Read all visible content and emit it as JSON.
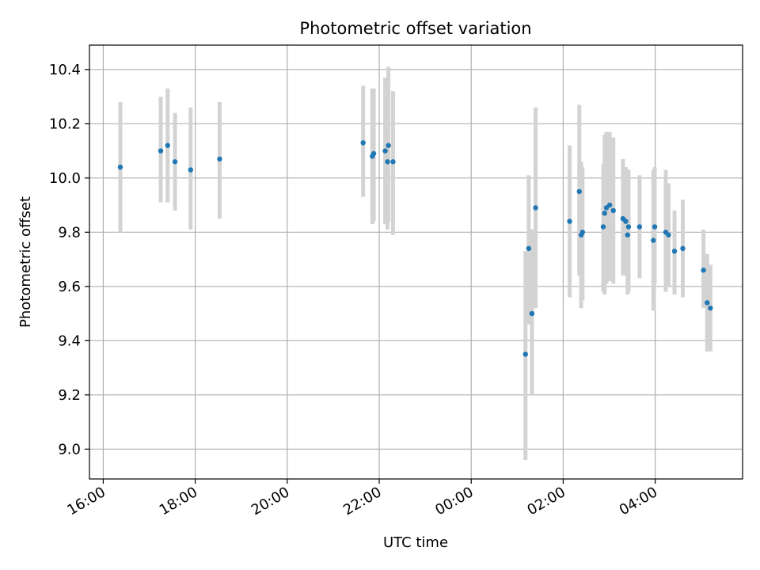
{
  "chart_data": {
    "type": "scatter",
    "title": "Photometric offset variation",
    "xlabel": "UTC time",
    "ylabel": "Photometric offset",
    "xlim_hours": [
      15.7,
      29.9
    ],
    "ylim": [
      8.89,
      10.49
    ],
    "x_ticks": [
      {
        "hours": 16,
        "label": "16:00"
      },
      {
        "hours": 18,
        "label": "18:00"
      },
      {
        "hours": 20,
        "label": "20:00"
      },
      {
        "hours": 22,
        "label": "22:00"
      },
      {
        "hours": 24,
        "label": "00:00"
      },
      {
        "hours": 26,
        "label": "02:00"
      },
      {
        "hours": 28,
        "label": "04:00"
      }
    ],
    "y_ticks": [
      {
        "value": 9.0,
        "label": "9.0"
      },
      {
        "value": 9.2,
        "label": "9.2"
      },
      {
        "value": 9.4,
        "label": "9.4"
      },
      {
        "value": 9.6,
        "label": "9.6"
      },
      {
        "value": 9.8,
        "label": "9.8"
      },
      {
        "value": 10.0,
        "label": "10.0"
      },
      {
        "value": 10.2,
        "label": "10.2"
      },
      {
        "value": 10.4,
        "label": "10.4"
      }
    ],
    "grid": true,
    "marker_color": "#1f77b4",
    "errorbar_color": "#d3d3d3",
    "points": [
      {
        "t": 16.37,
        "y": 10.04,
        "lo": 9.8,
        "hi": 10.28
      },
      {
        "t": 17.25,
        "y": 10.1,
        "lo": 9.91,
        "hi": 10.3
      },
      {
        "t": 17.4,
        "y": 10.12,
        "lo": 9.91,
        "hi": 10.33
      },
      {
        "t": 17.56,
        "y": 10.06,
        "lo": 9.88,
        "hi": 10.24
      },
      {
        "t": 17.9,
        "y": 10.03,
        "lo": 9.81,
        "hi": 10.26
      },
      {
        "t": 18.53,
        "y": 10.07,
        "lo": 9.85,
        "hi": 10.28
      },
      {
        "t": 21.65,
        "y": 10.13,
        "lo": 9.93,
        "hi": 10.34
      },
      {
        "t": 21.85,
        "y": 10.08,
        "lo": 9.83,
        "hi": 10.33
      },
      {
        "t": 21.88,
        "y": 10.09,
        "lo": 9.84,
        "hi": 10.33
      },
      {
        "t": 22.13,
        "y": 10.1,
        "lo": 9.83,
        "hi": 10.37
      },
      {
        "t": 22.18,
        "y": 10.06,
        "lo": 9.81,
        "hi": 10.31
      },
      {
        "t": 22.2,
        "y": 10.12,
        "lo": 9.84,
        "hi": 10.41
      },
      {
        "t": 22.3,
        "y": 10.06,
        "lo": 9.79,
        "hi": 10.32
      },
      {
        "t": 25.18,
        "y": 9.35,
        "lo": 8.96,
        "hi": 9.73
      },
      {
        "t": 25.25,
        "y": 9.74,
        "lo": 9.46,
        "hi": 10.01
      },
      {
        "t": 25.32,
        "y": 9.5,
        "lo": 9.2,
        "hi": 9.81
      },
      {
        "t": 25.4,
        "y": 9.89,
        "lo": 9.52,
        "hi": 10.26
      },
      {
        "t": 26.14,
        "y": 9.84,
        "lo": 9.56,
        "hi": 10.12
      },
      {
        "t": 26.35,
        "y": 9.95,
        "lo": 9.64,
        "hi": 10.27
      },
      {
        "t": 26.39,
        "y": 9.79,
        "lo": 9.52,
        "hi": 10.06
      },
      {
        "t": 26.42,
        "y": 9.8,
        "lo": 9.55,
        "hi": 10.04
      },
      {
        "t": 26.87,
        "y": 9.82,
        "lo": 9.58,
        "hi": 10.05
      },
      {
        "t": 26.9,
        "y": 9.87,
        "lo": 9.57,
        "hi": 10.16
      },
      {
        "t": 26.94,
        "y": 9.89,
        "lo": 9.61,
        "hi": 10.17
      },
      {
        "t": 27.01,
        "y": 9.9,
        "lo": 9.62,
        "hi": 10.17
      },
      {
        "t": 27.09,
        "y": 9.88,
        "lo": 9.61,
        "hi": 10.15
      },
      {
        "t": 27.3,
        "y": 9.85,
        "lo": 9.64,
        "hi": 10.07
      },
      {
        "t": 27.36,
        "y": 9.84,
        "lo": 9.64,
        "hi": 10.04
      },
      {
        "t": 27.4,
        "y": 9.79,
        "lo": 9.57,
        "hi": 10.02
      },
      {
        "t": 27.42,
        "y": 9.82,
        "lo": 9.58,
        "hi": 10.03
      },
      {
        "t": 27.66,
        "y": 9.82,
        "lo": 9.63,
        "hi": 10.01
      },
      {
        "t": 27.96,
        "y": 9.77,
        "lo": 9.51,
        "hi": 10.03
      },
      {
        "t": 27.99,
        "y": 9.82,
        "lo": 9.61,
        "hi": 10.04
      },
      {
        "t": 28.23,
        "y": 9.8,
        "lo": 9.58,
        "hi": 10.03
      },
      {
        "t": 28.29,
        "y": 9.79,
        "lo": 9.6,
        "hi": 9.98
      },
      {
        "t": 28.42,
        "y": 9.73,
        "lo": 9.57,
        "hi": 9.88
      },
      {
        "t": 28.6,
        "y": 9.74,
        "lo": 9.56,
        "hi": 9.92
      },
      {
        "t": 29.05,
        "y": 9.66,
        "lo": 9.52,
        "hi": 9.81
      },
      {
        "t": 29.13,
        "y": 9.54,
        "lo": 9.36,
        "hi": 9.72
      },
      {
        "t": 29.2,
        "y": 9.52,
        "lo": 9.36,
        "hi": 9.68
      }
    ]
  }
}
